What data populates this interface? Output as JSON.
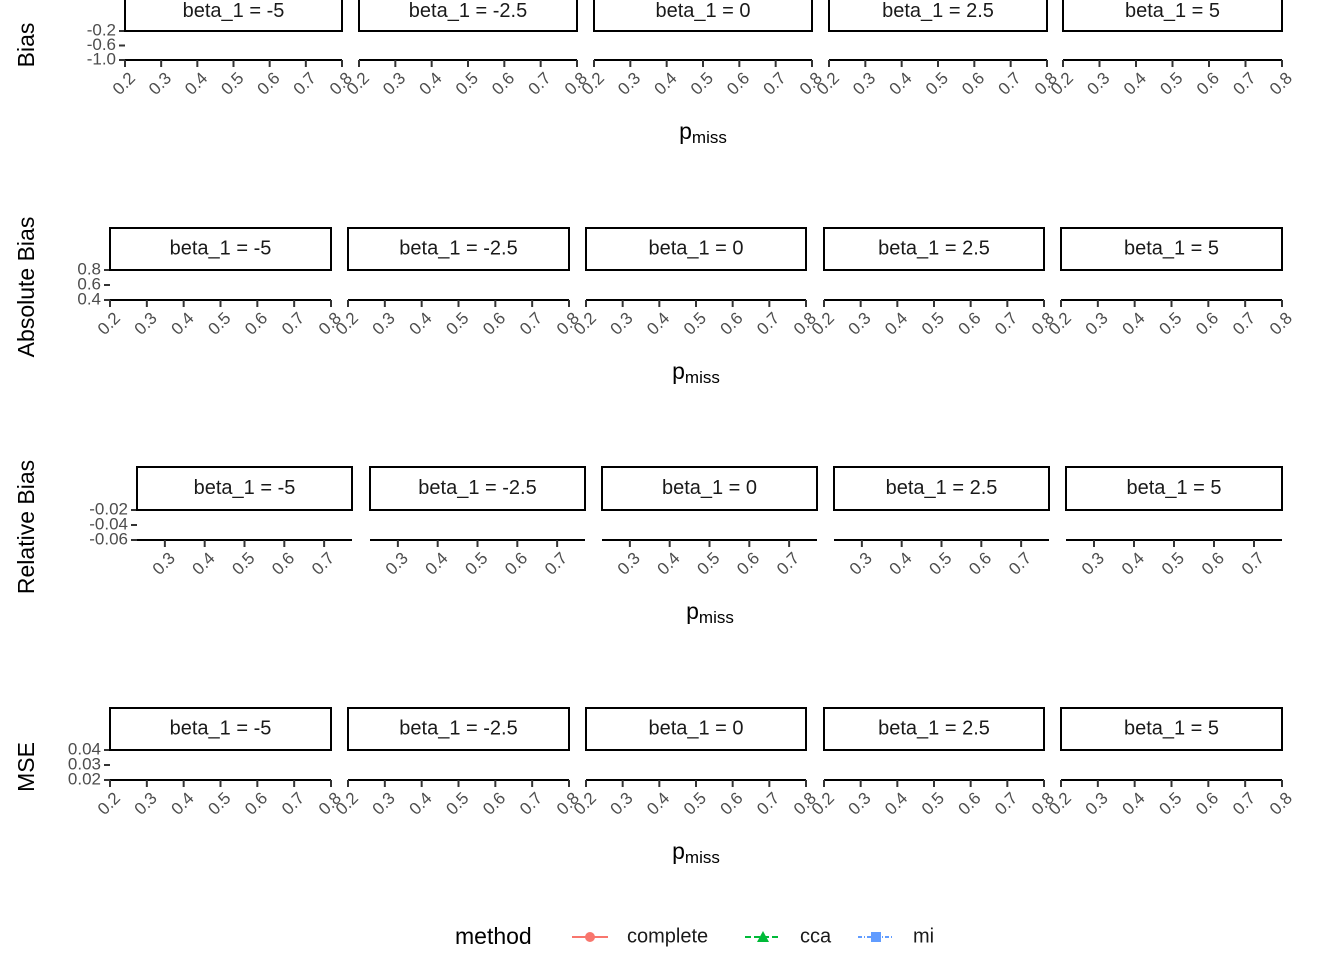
{
  "chart_data": [
    {
      "type": "line",
      "ylabel": "Bias",
      "xlabel": "p",
      "xlabel_sub": "miss",
      "facets": [
        "beta_1 = -5",
        "beta_1 = -2.5",
        "beta_1 = 0",
        "beta_1 = 2.5",
        "beta_1 = 5"
      ],
      "xlim": [
        0.2,
        0.8
      ],
      "xticks": [
        0.2,
        0.3,
        0.4,
        0.5,
        0.6,
        0.7,
        0.8
      ],
      "ylim": [
        -1,
        -0.2
      ],
      "yticks": [
        {
          "value": -1,
          "label": "-1.0"
        },
        -0.6,
        -0.2
      ]
    },
    {
      "type": "line",
      "ylabel": "Absolute Bias",
      "xlabel": "p",
      "xlabel_sub": "miss",
      "facets": [
        "beta_1 = -5",
        "beta_1 = -2.5",
        "beta_1 = 0",
        "beta_1 = 2.5",
        "beta_1 = 5"
      ],
      "xlim": [
        0.2,
        0.8
      ],
      "xticks": [
        0.2,
        0.3,
        0.4,
        0.5,
        0.6,
        0.7,
        0.8
      ],
      "ylim": [
        0.4,
        0.8
      ],
      "yticks": [
        0.4,
        0.6,
        0.8
      ]
    },
    {
      "type": "line",
      "ylabel": "Relative Bias",
      "xlabel": "p",
      "xlabel_sub": "miss",
      "facets": [
        "beta_1 = -5",
        "beta_1 = -2.5",
        "beta_1 = 0",
        "beta_1 = 2.5",
        "beta_1 = 5"
      ],
      "xlim": [
        0.23,
        0.77
      ],
      "xticks": [
        0.3,
        0.4,
        0.5,
        0.6,
        0.7
      ],
      "ylim": [
        -0.06,
        -0.02
      ],
      "yticks": [
        -0.06,
        -0.04,
        -0.02
      ]
    },
    {
      "type": "line",
      "ylabel": "MSE",
      "xlabel": "p",
      "xlabel_sub": "miss",
      "facets": [
        "beta_1 = -5",
        "beta_1 = -2.5",
        "beta_1 = 0",
        "beta_1 = 2.5",
        "beta_1 = 5"
      ],
      "xlim": [
        0.2,
        0.8
      ],
      "xticks": [
        0.2,
        0.3,
        0.4,
        0.5,
        0.6,
        0.7,
        0.8
      ],
      "ylim": [
        0.02,
        0.04
      ],
      "yticks": [
        0.02,
        0.03,
        0.04
      ]
    }
  ],
  "legend": {
    "title": "method",
    "items": [
      {
        "name": "complete",
        "color": "#F8766D",
        "shape": "circle"
      },
      {
        "name": "cca",
        "color": "#00BA38",
        "shape": "triangle"
      },
      {
        "name": "mi",
        "color": "#619CFF",
        "shape": "square"
      }
    ]
  }
}
